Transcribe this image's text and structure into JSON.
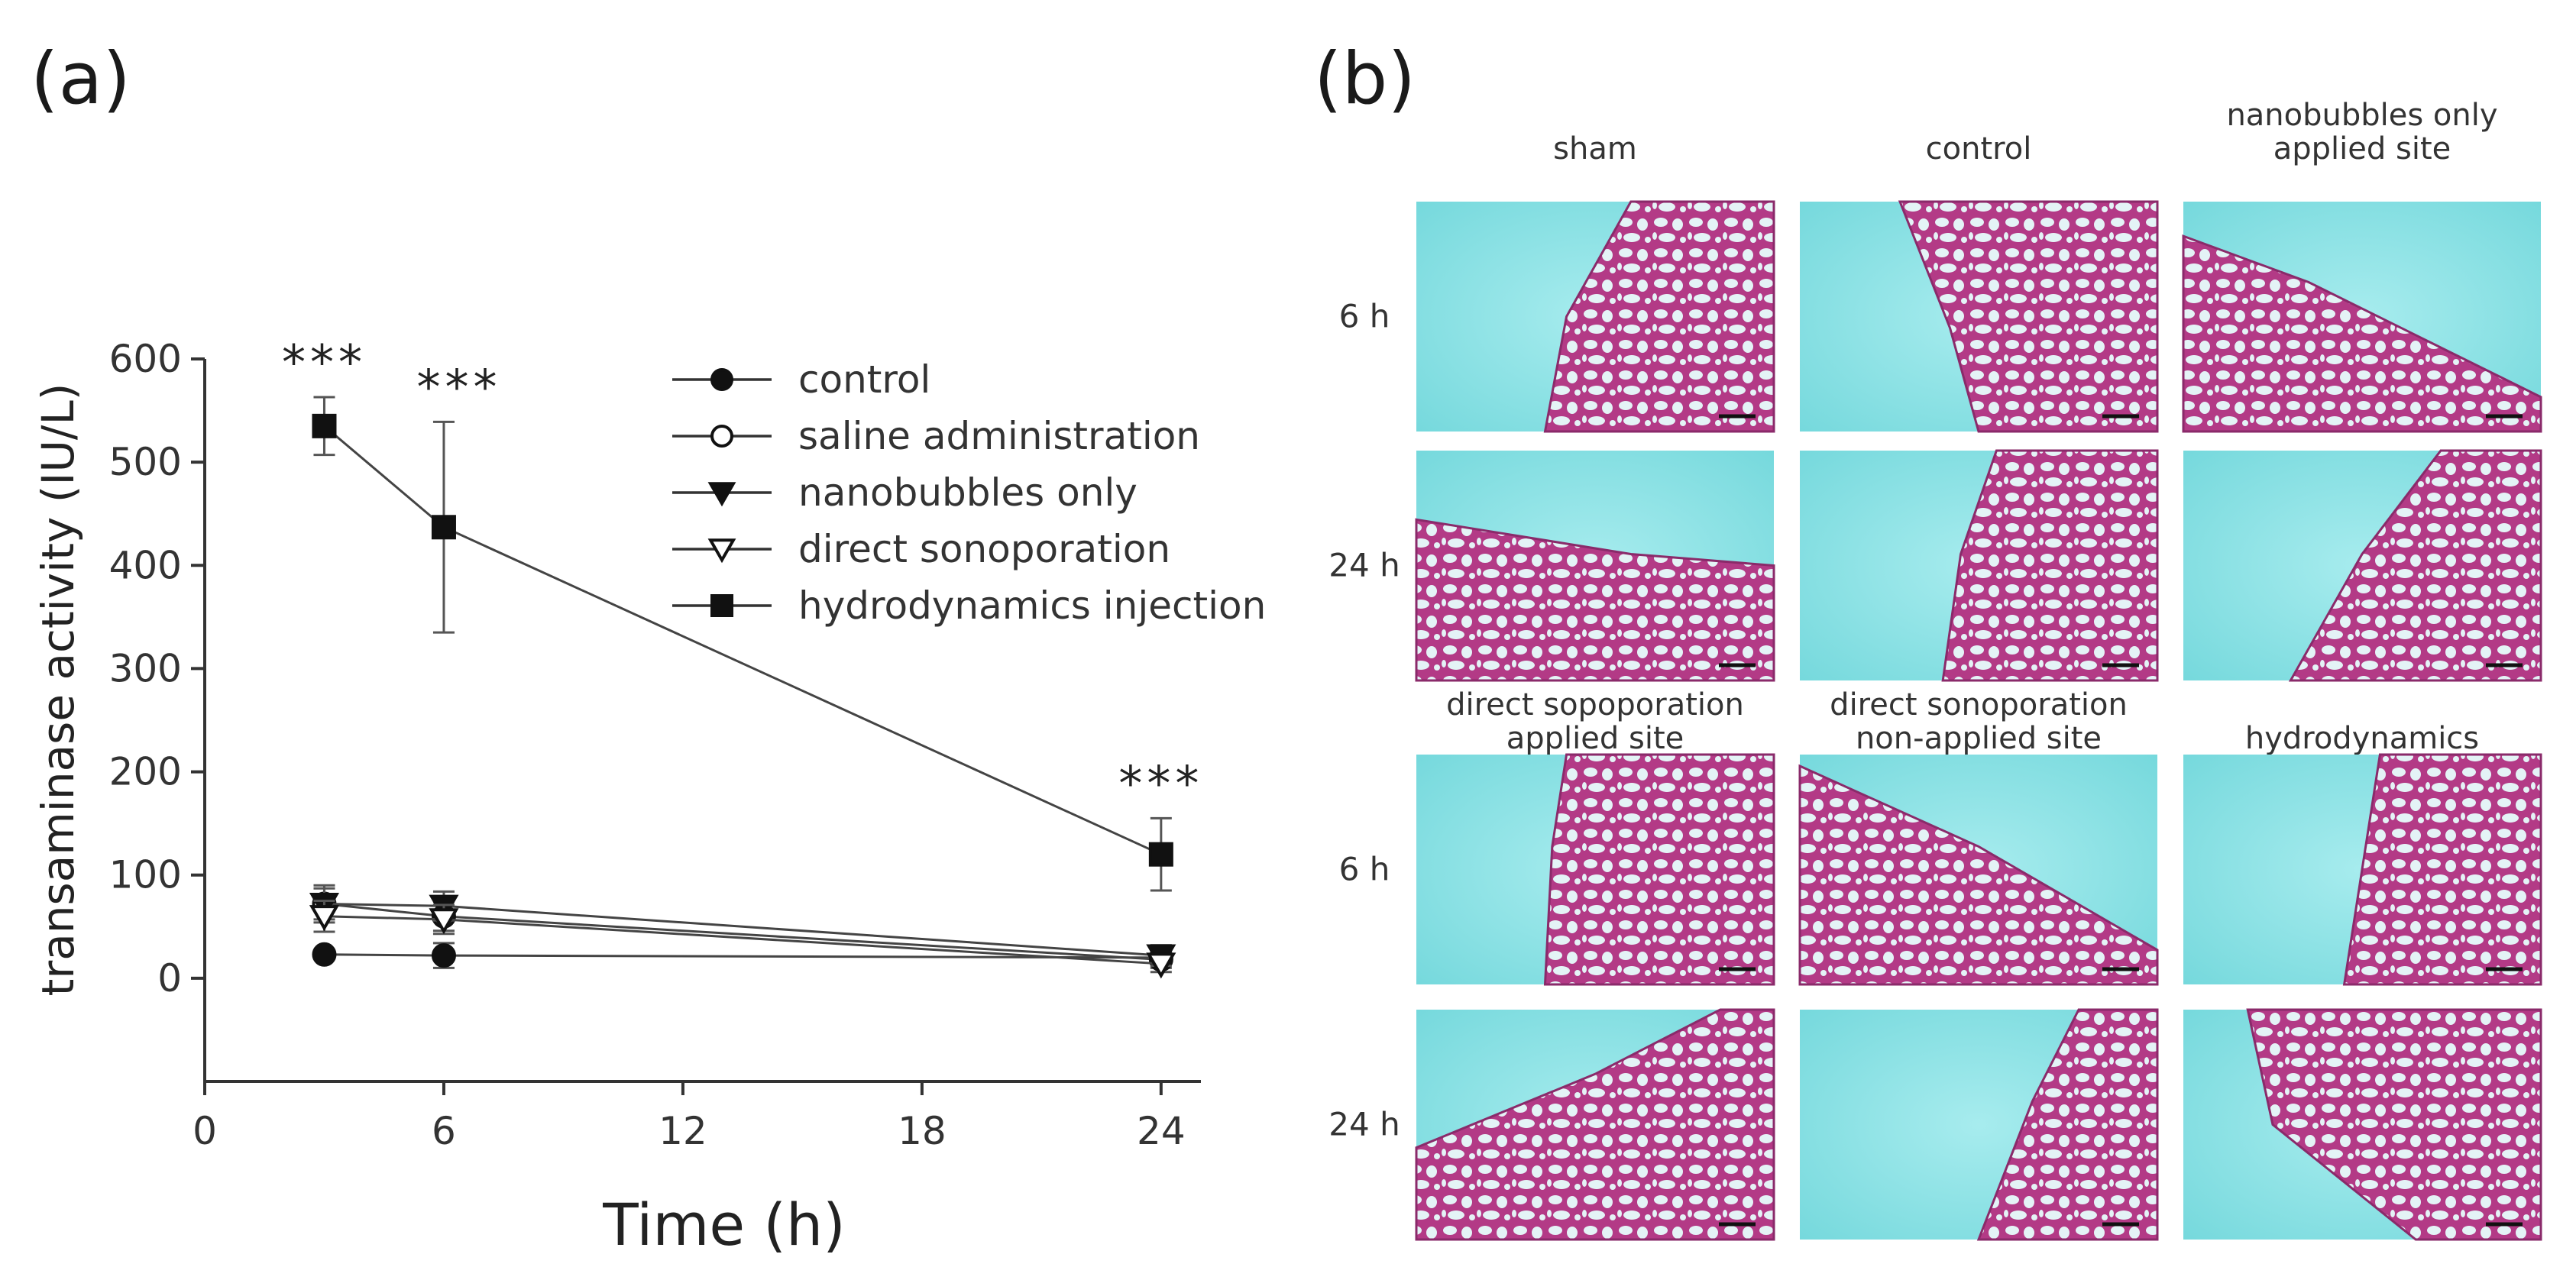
{
  "panel_a_label": "(a)",
  "panel_b_label": "(b)",
  "chart_data": {
    "type": "line",
    "title": "",
    "xlabel": "Time (h)",
    "ylabel": "transaminase activity (IU/L)",
    "xlim": [
      0,
      25
    ],
    "ylim": [
      -100,
      600
    ],
    "xticks": [
      0,
      6,
      12,
      18,
      24
    ],
    "yticks": [
      0,
      100,
      200,
      300,
      400,
      500,
      600
    ],
    "x": [
      3,
      6,
      24
    ],
    "series": [
      {
        "name": "control",
        "marker": "filled-circle",
        "values": [
          23,
          22,
          20
        ],
        "err": [
          3,
          12,
          5
        ]
      },
      {
        "name": "saline administration",
        "marker": "open-circle",
        "values": [
          72,
          60,
          18
        ],
        "err": [
          15,
          14,
          8
        ]
      },
      {
        "name": "nanobubbles only",
        "marker": "filled-triangle",
        "values": [
          72,
          70,
          22
        ],
        "err": [
          18,
          14,
          10
        ]
      },
      {
        "name": "direct sonoporation",
        "marker": "open-triangle",
        "values": [
          60,
          57,
          14
        ],
        "err": [
          15,
          14,
          8
        ]
      },
      {
        "name": "hydrodynamics injection",
        "marker": "filled-square",
        "values": [
          535,
          437,
          120
        ],
        "err": [
          28,
          102,
          35
        ]
      }
    ],
    "annotations": [
      {
        "x": 3,
        "text": "***"
      },
      {
        "x": 6,
        "text": "***"
      },
      {
        "x": 24,
        "text": "***"
      }
    ],
    "legend_position": "top-right"
  },
  "micrographs": {
    "columns_top": [
      "sham",
      "control",
      "nanobubbles only applied site"
    ],
    "columns_bottom": [
      "direct sopoporation applied site",
      "direct sonoporation non-applied site",
      "hydrodynamics"
    ],
    "rows": [
      "6 h",
      "24 h",
      "6 h",
      "24 h"
    ],
    "colors": {
      "background": "#7fe0e4",
      "tissue": "#b0357f",
      "lumen": "#e2f3f6",
      "scale_bar": "#111111"
    }
  }
}
